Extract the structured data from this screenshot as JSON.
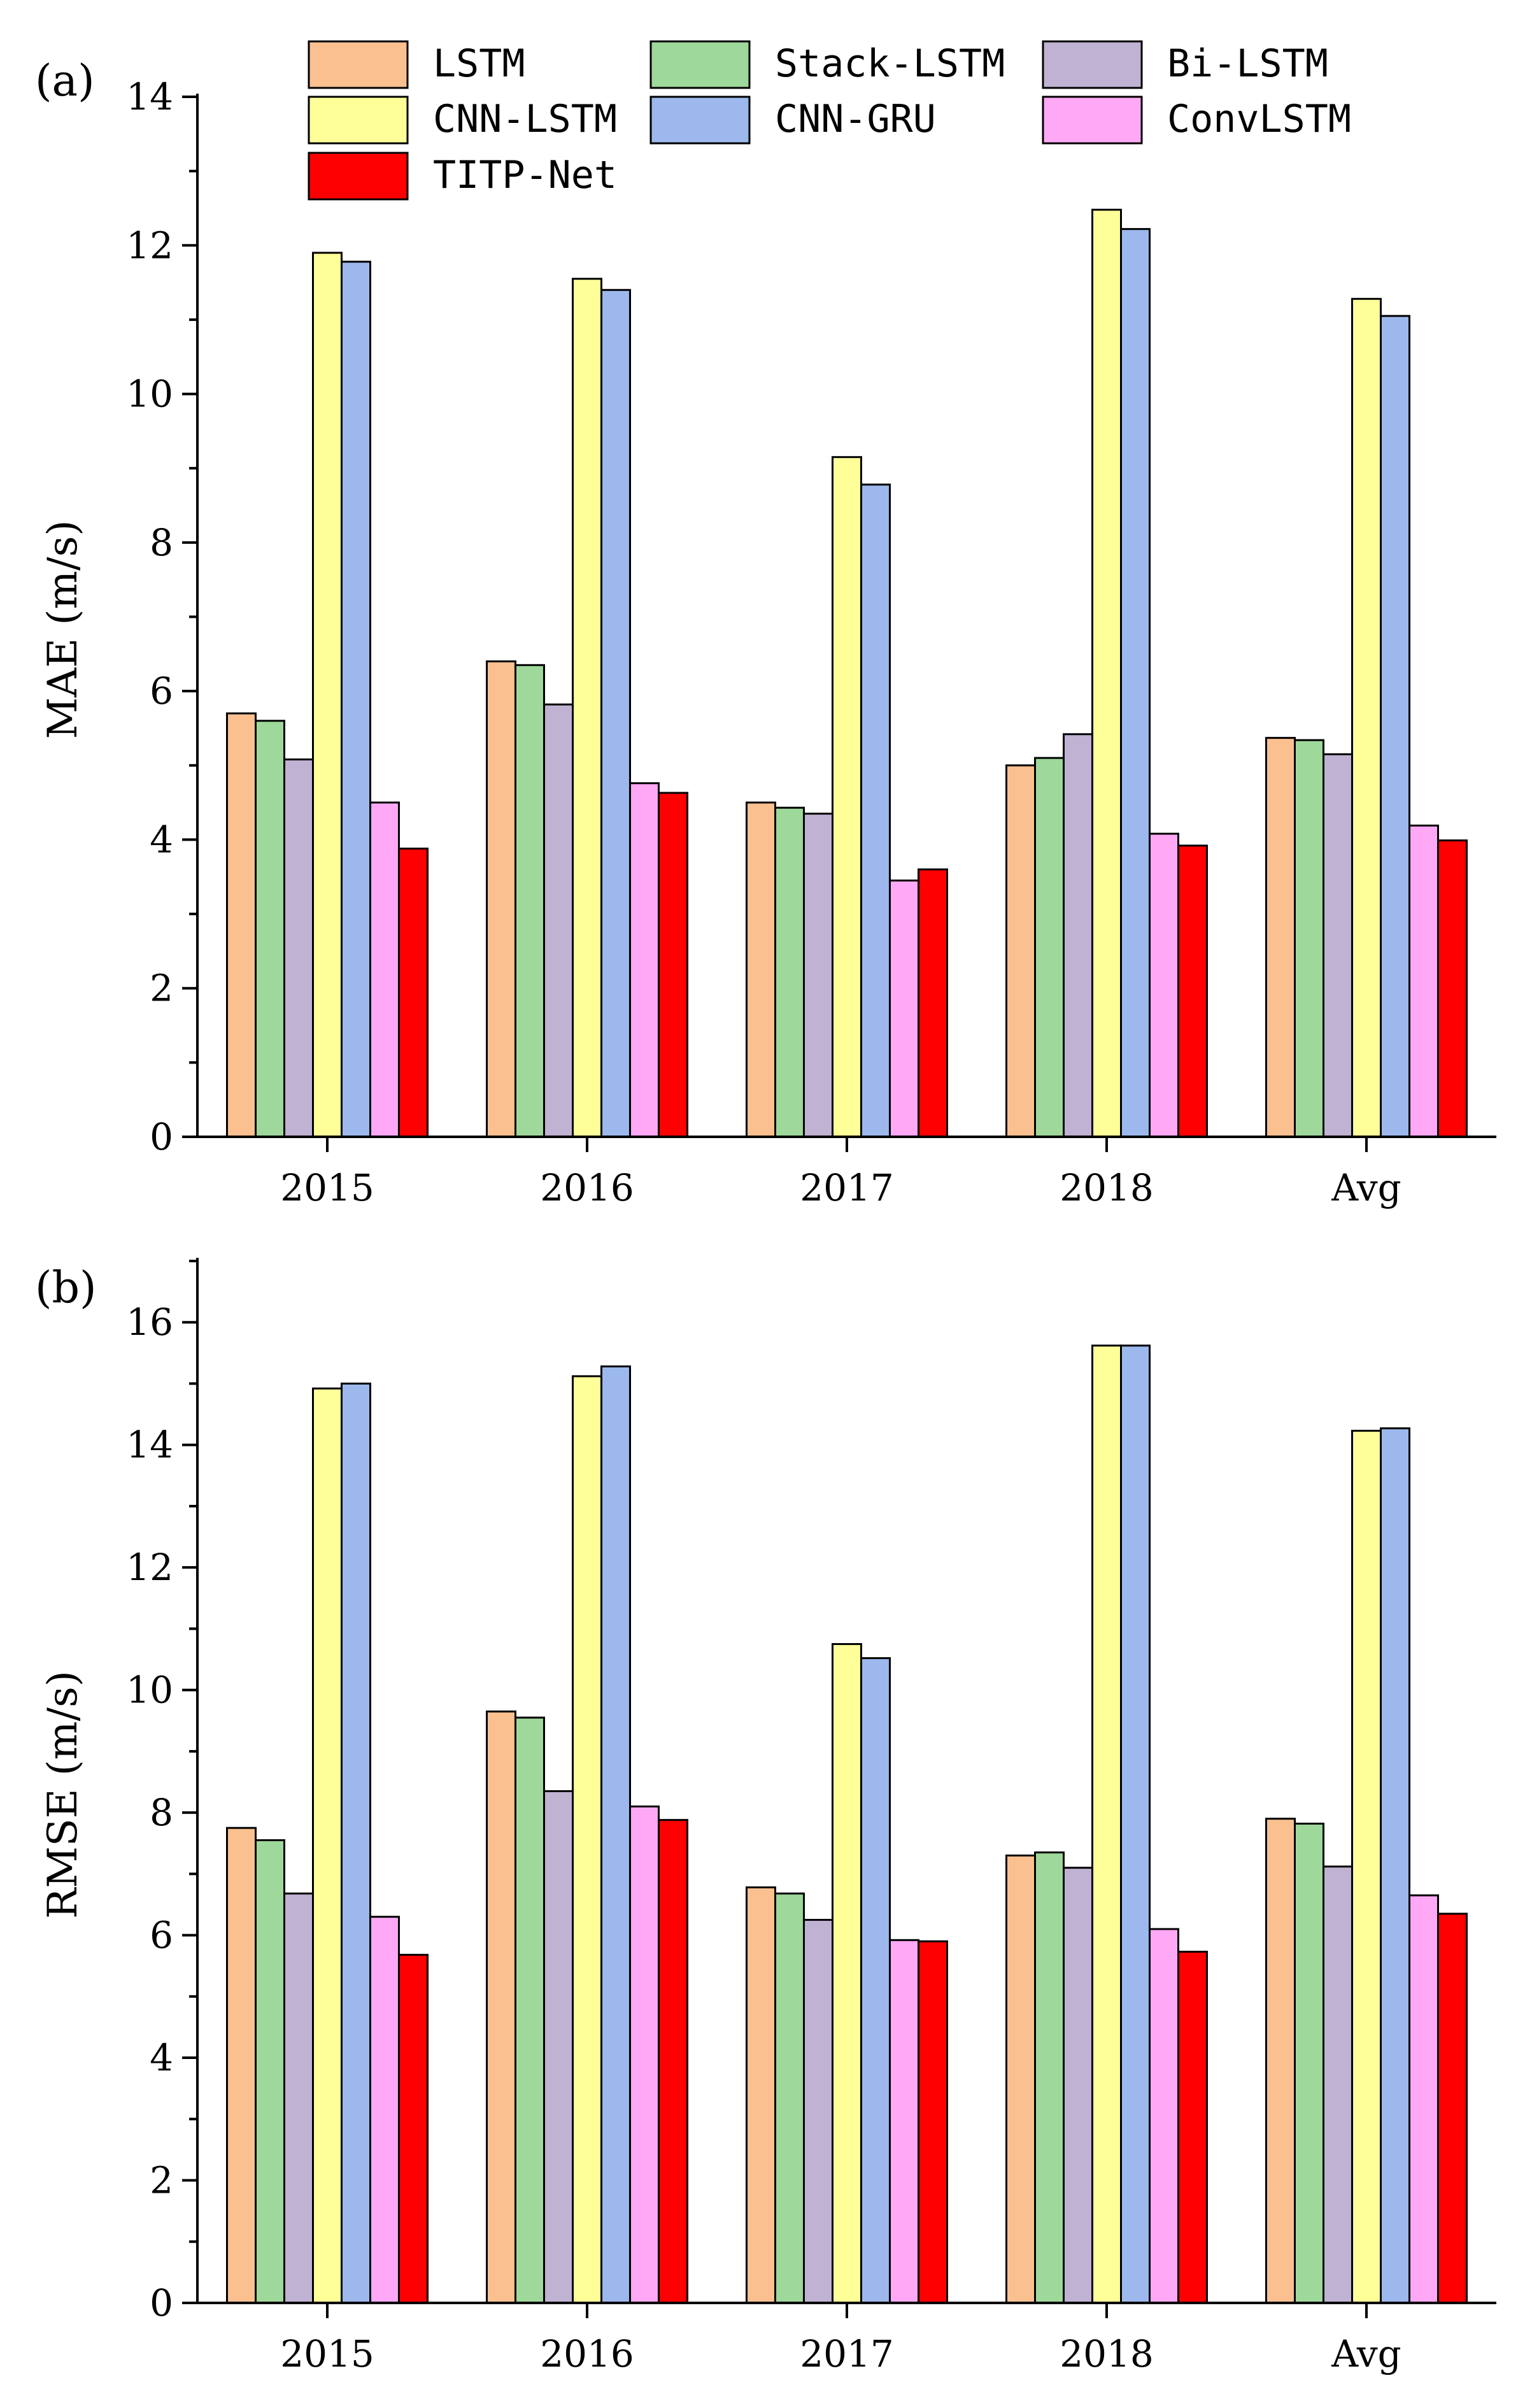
{
  "chart_data": [
    {
      "type": "bar",
      "panel_label": "(a)",
      "ylabel": "MAE (m/s)",
      "xlabel": "",
      "ylim": [
        0,
        14
      ],
      "yticks": [
        0,
        2,
        4,
        6,
        8,
        10,
        12,
        14
      ],
      "categories": [
        "2015",
        "2016",
        "2017",
        "2018",
        "Avg"
      ],
      "series": [
        {
          "name": "LSTM",
          "color": "#FAC090",
          "values": [
            5.7,
            6.4,
            4.5,
            5.0,
            5.37
          ]
        },
        {
          "name": "Stack-LSTM",
          "color": "#9ED89A",
          "values": [
            5.6,
            6.35,
            4.43,
            5.1,
            5.34
          ]
        },
        {
          "name": "Bi-LSTM",
          "color": "#C0B2D2",
          "values": [
            5.08,
            5.82,
            4.35,
            5.42,
            5.15
          ]
        },
        {
          "name": "CNN-LSTM",
          "color": "#FFFF99",
          "values": [
            11.9,
            11.55,
            9.15,
            12.48,
            11.28
          ]
        },
        {
          "name": "CNN-GRU",
          "color": "#9CB8EC",
          "values": [
            11.78,
            11.4,
            8.78,
            12.22,
            11.05
          ]
        },
        {
          "name": "ConvLSTM",
          "color": "#FFA8F5",
          "values": [
            4.5,
            4.76,
            3.45,
            4.08,
            4.19
          ]
        },
        {
          "name": "TITP-Net",
          "color": "#FF0000",
          "values": [
            3.88,
            4.63,
            3.6,
            3.92,
            3.99
          ]
        }
      ]
    },
    {
      "type": "bar",
      "panel_label": "(b)",
      "ylabel": "RMSE (m/s)",
      "xlabel": "",
      "ylim": [
        0,
        17
      ],
      "yticks": [
        0,
        2,
        4,
        6,
        8,
        10,
        12,
        14,
        16
      ],
      "categories": [
        "2015",
        "2016",
        "2017",
        "2018",
        "Avg"
      ],
      "series": [
        {
          "name": "LSTM",
          "color": "#FAC090",
          "values": [
            7.75,
            9.65,
            6.78,
            7.3,
            7.9
          ]
        },
        {
          "name": "Stack-LSTM",
          "color": "#9ED89A",
          "values": [
            7.55,
            9.55,
            6.68,
            7.35,
            7.82
          ]
        },
        {
          "name": "Bi-LSTM",
          "color": "#C0B2D2",
          "values": [
            6.68,
            8.35,
            6.25,
            7.1,
            7.12
          ]
        },
        {
          "name": "CNN-LSTM",
          "color": "#FFFF99",
          "values": [
            14.92,
            15.12,
            10.75,
            15.62,
            14.23
          ]
        },
        {
          "name": "CNN-GRU",
          "color": "#9CB8EC",
          "values": [
            15.0,
            15.28,
            10.52,
            15.62,
            14.27
          ]
        },
        {
          "name": "ConvLSTM",
          "color": "#FFA8F5",
          "values": [
            6.3,
            8.1,
            5.92,
            6.1,
            6.65
          ]
        },
        {
          "name": "TITP-Net",
          "color": "#FF0000",
          "values": [
            5.68,
            7.88,
            5.9,
            5.73,
            6.35
          ]
        }
      ]
    }
  ],
  "legend": {
    "placement": "top",
    "items": [
      "LSTM",
      "Stack-LSTM",
      "Bi-LSTM",
      "CNN-LSTM",
      "CNN-GRU",
      "ConvLSTM",
      "TITP-Net"
    ]
  }
}
